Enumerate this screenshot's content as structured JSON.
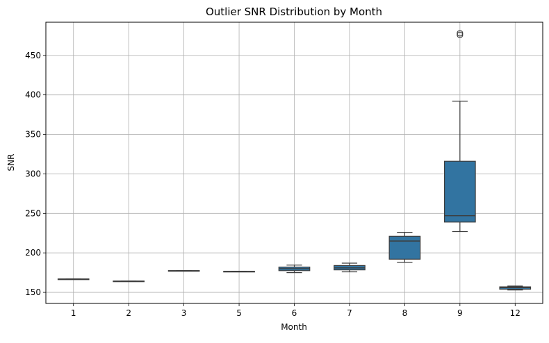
{
  "chart_data": {
    "type": "box",
    "title": "Outlier SNR Distribution by Month",
    "xlabel": "Month",
    "ylabel": "SNR",
    "categories": [
      "1",
      "2",
      "3",
      "5",
      "6",
      "7",
      "8",
      "9",
      "12"
    ],
    "ylim": [
      136,
      492
    ],
    "yticks": [
      150,
      200,
      250,
      300,
      350,
      400,
      450
    ],
    "grid": true,
    "box_color": "#3274a1",
    "line_color": "#3d3d3d",
    "boxes": [
      {
        "category": "1",
        "whisker_low": 166.5,
        "q1": 166.5,
        "median": 166.8,
        "q3": 167.0,
        "whisker_high": 167.0,
        "outliers": []
      },
      {
        "category": "2",
        "whisker_low": 163.8,
        "q1": 163.8,
        "median": 164.1,
        "q3": 164.4,
        "whisker_high": 164.4,
        "outliers": []
      },
      {
        "category": "3",
        "whisker_low": 177.0,
        "q1": 177.0,
        "median": 177.3,
        "q3": 177.6,
        "whisker_high": 177.6,
        "outliers": []
      },
      {
        "category": "5",
        "whisker_low": 176.1,
        "q1": 176.1,
        "median": 176.4,
        "q3": 176.7,
        "whisker_high": 176.7,
        "outliers": []
      },
      {
        "category": "6",
        "whisker_low": 175.0,
        "q1": 177.5,
        "median": 180.0,
        "q3": 182.0,
        "whisker_high": 184.5,
        "outliers": []
      },
      {
        "category": "7",
        "whisker_low": 176.0,
        "q1": 178.5,
        "median": 181.0,
        "q3": 184.0,
        "whisker_high": 187.0,
        "outliers": []
      },
      {
        "category": "8",
        "whisker_low": 188.0,
        "q1": 192.0,
        "median": 215.0,
        "q3": 221.0,
        "whisker_high": 226.0,
        "outliers": []
      },
      {
        "category": "9",
        "whisker_low": 227.0,
        "q1": 239.0,
        "median": 247.0,
        "q3": 316.0,
        "whisker_high": 392.0,
        "outliers": [
          476.0,
          478.0
        ]
      },
      {
        "category": "12",
        "whisker_low": 153.0,
        "q1": 154.0,
        "median": 156.0,
        "q3": 157.0,
        "whisker_high": 158.0,
        "outliers": []
      }
    ]
  }
}
